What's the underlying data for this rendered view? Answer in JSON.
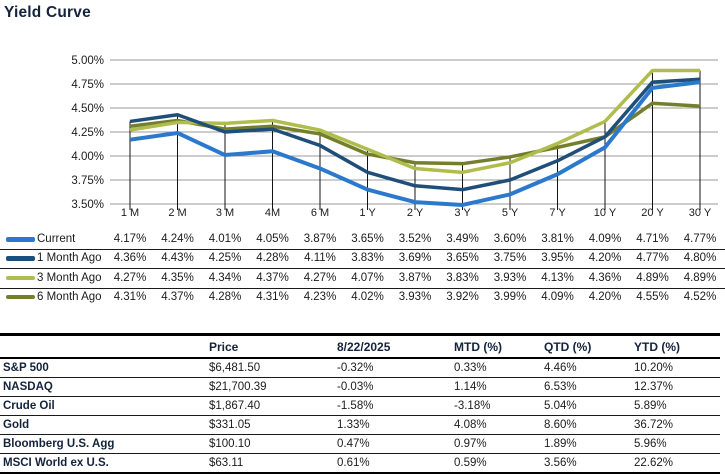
{
  "page": {
    "title": "Yield Curve"
  },
  "colors": {
    "heading_text": "#14233C",
    "grid_line": "#9B9B9B",
    "drop_line": "#141414",
    "body_text": "#1C1C1E",
    "series_current": "#2B79CC",
    "series_one_month": "#1F4E79",
    "series_three_month": "#B0BD4C",
    "series_six_month": "#747F2E"
  },
  "chart_data": [
    {
      "type": "line",
      "title": "Yield Curve",
      "xlabel": "",
      "ylabel": "",
      "categories": [
        "1 M",
        "2 M",
        "3 M",
        "4M",
        "6 M",
        "1 Y",
        "2 Y",
        "3 Y",
        "5 Y",
        "7 Y",
        "10 Y",
        "20 Y",
        "30 Y"
      ],
      "series": [
        {
          "name": "Current",
          "color": "#2B79CC",
          "values": [
            4.17,
            4.24,
            4.01,
            4.05,
            3.87,
            3.65,
            3.52,
            3.49,
            3.6,
            3.81,
            4.09,
            4.71,
            4.77
          ]
        },
        {
          "name": "1 Month Ago",
          "color": "#1F4E79",
          "values": [
            4.36,
            4.43,
            4.25,
            4.28,
            4.11,
            3.83,
            3.69,
            3.65,
            3.75,
            3.95,
            4.2,
            4.77,
            4.8
          ]
        },
        {
          "name": "3 Month Ago",
          "color": "#B0BD4C",
          "values": [
            4.27,
            4.35,
            4.34,
            4.37,
            4.27,
            4.07,
            3.87,
            3.83,
            3.93,
            4.13,
            4.36,
            4.89,
            4.89
          ]
        },
        {
          "name": "6 Month Ago",
          "color": "#747F2E",
          "values": [
            4.31,
            4.37,
            4.28,
            4.31,
            4.23,
            4.02,
            3.93,
            3.92,
            3.99,
            4.09,
            4.2,
            4.55,
            4.52
          ]
        }
      ],
      "y_tick_labels": [
        "5.00%",
        "4.75%",
        "4.50%",
        "4.25%",
        "4.00%",
        "3.75%",
        "3.50%"
      ],
      "ylim": [
        3.5,
        5.0
      ],
      "grid": "horizontal-gridlines-on, vertical-drop-lines-per-category",
      "legend_position": "table-below-chart-left",
      "value_suffix": "%"
    },
    {
      "type": "table",
      "columns": [
        "",
        "Price",
        "8/22/2025",
        "MTD (%)",
        "QTD (%)",
        "YTD (%)"
      ],
      "rows": [
        [
          "S&P 500",
          "$6,481.50",
          "-0.32%",
          "0.33%",
          "4.46%",
          "10.20%"
        ],
        [
          "NASDAQ",
          "$21,700.39",
          "-0.03%",
          "1.14%",
          "6.53%",
          "12.37%"
        ],
        [
          "Crude Oil",
          "$1,867.40",
          "-1.58%",
          "-3.18%",
          "5.04%",
          "5.89%"
        ],
        [
          "Gold",
          "$331.05",
          "1.33%",
          "4.08%",
          "8.60%",
          "36.72%"
        ],
        [
          "Bloomberg U.S. Agg",
          "$100.10",
          "0.47%",
          "0.97%",
          "1.89%",
          "5.96%"
        ],
        [
          "MSCI World ex U.S.",
          "$63.11",
          "0.61%",
          "0.59%",
          "3.56%",
          "22.62%"
        ]
      ]
    }
  ]
}
